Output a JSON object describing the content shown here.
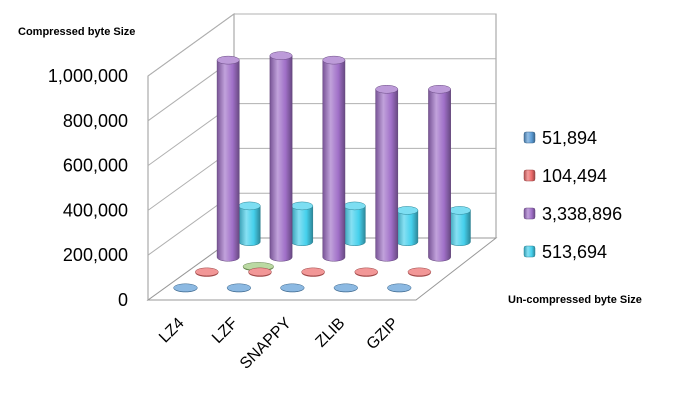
{
  "chart_data": {
    "type": "bar",
    "style": "3d-cylinder",
    "title": "Compressed byte Size",
    "z_axis_label": "Un-compressed byte Size",
    "categories": [
      "LZ4",
      "LZF",
      "SNAPPY",
      "ZLIB",
      "GZIP"
    ],
    "yticks": [
      "0",
      "200,000",
      "400,000",
      "600,000",
      "800,000",
      "1,000,000"
    ],
    "ylim": [
      0,
      1000000
    ],
    "series": [
      {
        "name": "51,894",
        "color": "#5b9bd5",
        "values": [
          2000,
          2000,
          2000,
          2000,
          2000
        ]
      },
      {
        "name": "104,494",
        "color": "#ec6a6a",
        "values": [
          4000,
          4000,
          4000,
          4000,
          4000
        ]
      },
      {
        "name": "3,338,896",
        "color": "#a070c8",
        "values": [
          880000,
          900000,
          880000,
          750000,
          750000
        ]
      },
      {
        "name": "513,694",
        "color": "#45d0ec",
        "values": [
          160000,
          160000,
          160000,
          140000,
          140000
        ]
      }
    ],
    "extra_marks": [
      {
        "category": "LZF",
        "series_index": 1,
        "color": "#9cc87a",
        "value": 4000
      }
    ],
    "grid": true,
    "legend_position": "right"
  }
}
